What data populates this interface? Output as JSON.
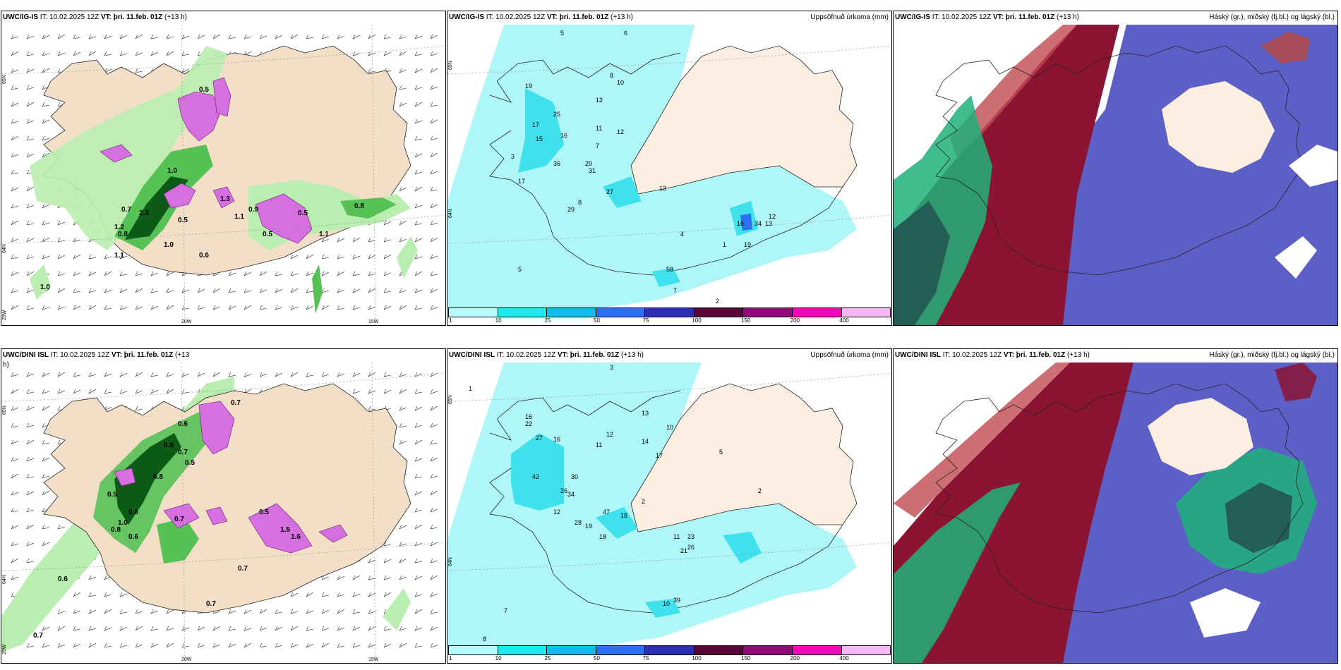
{
  "colors": {
    "land": "#f3dfc8",
    "land_light": "#fcefe2",
    "precip_light_green": "#b9eeb0",
    "precip_green": "#56c256",
    "precip_dark_green": "#0c5a16",
    "snow_magenta": "#d66fe0",
    "accum_cyan_light": "#aef6f8",
    "accum_cyan": "#3fe2ec",
    "cloud_high_red": "#8b1433",
    "cloud_mid_green": "#1fb07a",
    "cloud_low_blue": "#4a4fc0"
  },
  "panels": [
    {
      "id": "ig-wind",
      "model": "UWC/IG-IS",
      "it_label": "IT:",
      "it_value": "10.02.2025 12Z",
      "vt_label": "VT:",
      "vt_value": "þri. 11.feb. 01Z",
      "lead": "(+13 h)",
      "right_title": "",
      "axis_labels": [
        "65N",
        "64N",
        "25W",
        "20W",
        "15W"
      ],
      "value_labels": [
        "0.5",
        "1.0",
        "0.7",
        "1.2",
        "0.8",
        "1.1",
        "2.3",
        "1.0",
        "0.5",
        "0.6",
        "1.1",
        "0.9",
        "1.3",
        "0.5",
        "1.1",
        "0.5",
        "0.8",
        "1.0"
      ]
    },
    {
      "id": "ig-accum",
      "model": "UWC/IG-IS",
      "it_label": "IT:",
      "it_value": "10.02.2025 12Z",
      "vt_label": "VT:",
      "vt_value": "þri. 11.feb. 01Z",
      "lead": "(+13 h)",
      "right_title": "Uppsöfnuð úrkoma (mm)",
      "axis_labels": [
        "65N",
        "64N"
      ],
      "value_labels": [
        "5",
        "6",
        "19",
        "8",
        "10",
        "25",
        "17",
        "16",
        "15",
        "12",
        "11",
        "12",
        "7",
        "3",
        "36",
        "20",
        "31",
        "17",
        "8",
        "29",
        "27",
        "13",
        "16",
        "34",
        "19",
        "13",
        "12",
        "4",
        "58",
        "2",
        "1",
        "5",
        "7"
      ]
    },
    {
      "id": "ig-cloud",
      "model": "UWC/IG-IS",
      "it_label": "IT:",
      "it_value": "10.02.2025 12Z",
      "vt_label": "VT:",
      "vt_value": "þri. 11.feb. 01Z",
      "lead": "(+13 h)",
      "right_title": "Háský (gr.), miðský (fj.bl.) og lágský (bl.)",
      "axis_labels": [],
      "value_labels": []
    },
    {
      "id": "dini-wind",
      "model": "UWC/DINI ISL",
      "it_label": "IT:",
      "it_value": "10.02.2025 12Z",
      "vt_label": "VT:",
      "vt_value": "þri. 11.feb. 01Z",
      "lead": "(+13",
      "lead_wrap": "h)",
      "right_title": "",
      "axis_labels": [
        "65N",
        "64N",
        "25W",
        "20W",
        "15W"
      ],
      "value_labels": [
        "0.7",
        "0.6",
        "0.6",
        "0.7",
        "0.5",
        "0.8",
        "0.5",
        "0.6",
        "1.0",
        "0.8",
        "0.6",
        "0.7",
        "0.5",
        "1.5",
        "1.6",
        "0.7",
        "0.7",
        "0.6",
        "0.7"
      ]
    },
    {
      "id": "dini-accum",
      "model": "UWC/DINI ISL",
      "it_label": "IT:",
      "it_value": "10.02.2025 12Z",
      "vt_label": "VT:",
      "vt_value": "þri. 11.feb. 01Z",
      "lead": "(+13 h)",
      "right_title": "Uppsöfnuð úrkoma (mm)",
      "axis_labels": [
        "65N",
        "64N"
      ],
      "value_labels": [
        "3",
        "1",
        "16",
        "22",
        "27",
        "16",
        "12",
        "11",
        "13",
        "10",
        "14",
        "17",
        "2",
        "42",
        "30",
        "26",
        "34",
        "18",
        "47",
        "12",
        "28",
        "19",
        "23",
        "26",
        "21",
        "18",
        "11",
        "39",
        "10",
        "7",
        "8",
        "5",
        "2"
      ]
    },
    {
      "id": "dini-cloud",
      "model": "UWC/DINI ISL",
      "it_label": "IT:",
      "it_value": "10.02.2025 12Z",
      "vt_label": "VT:",
      "vt_value": "þri. 11.feb. 01Z",
      "lead": "(+13 h)",
      "right_title": "Háský (gr.), miðský (fj.bl.) og lágský (bl.)",
      "axis_labels": [],
      "value_labels": []
    }
  ],
  "colorbar": {
    "colors": [
      "#b6fafc",
      "#1fe9ee",
      "#14b9ee",
      "#2a6ff0",
      "#2a2fb6",
      "#5c0438",
      "#93087a",
      "#ee08b8",
      "#f6b6f4"
    ],
    "ticks": [
      "1",
      "10",
      "25",
      "50",
      "75",
      "100",
      "150",
      "200",
      "400"
    ]
  }
}
